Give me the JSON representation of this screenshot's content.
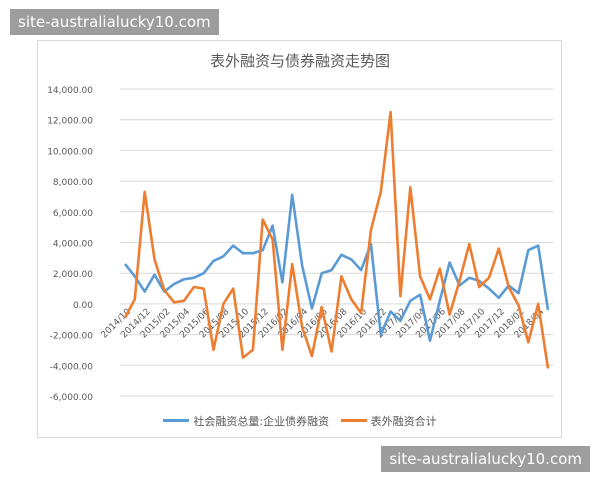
{
  "watermark": "site-australialucky10.com",
  "chart_data": {
    "type": "line",
    "title": "表外融资与债券融资走势图",
    "xlabel": "",
    "ylabel": "",
    "ylim": [
      -6000,
      14000
    ],
    "yticks": [
      14000,
      12000,
      10000,
      8000,
      6000,
      4000,
      2000,
      0,
      -2000,
      -4000,
      -6000
    ],
    "ytick_labels": [
      "14,000.00",
      "12,000.00",
      "10,000.00",
      "8,000.00",
      "6,000.00",
      "4,000.00",
      "2,000.00",
      "0.00",
      "-2,000.00",
      "-4,000.00",
      "-6,000.00"
    ],
    "grid": true,
    "legend": "bottom",
    "x_tick_labels": [
      "2014/10",
      "2014/12",
      "2015/02",
      "2015/04",
      "2015/06",
      "2015/08",
      "2015/10",
      "2015/12",
      "2016/02",
      "2016/04",
      "2016/06",
      "2016/08",
      "2016/10",
      "2016/12",
      "2017/02",
      "2017/04",
      "2017/06",
      "2017/08",
      "2017/10",
      "2017/12",
      "2018/02",
      "2018/04"
    ],
    "series": [
      {
        "name": "社会融资总量:企业债券融资",
        "color": "#5b9bd5",
        "values": [
          2600,
          1800,
          800,
          1900,
          800,
          1300,
          1600,
          1700,
          2000,
          2800,
          3100,
          3800,
          3300,
          3300,
          3500,
          5100,
          1400,
          7100,
          2500,
          -300,
          2000,
          2200,
          3200,
          2900,
          2200,
          3900,
          -2000,
          -500,
          -1100,
          200,
          600,
          -2400,
          200,
          2700,
          1200,
          1700,
          1500,
          1000,
          400,
          1200,
          700,
          3500,
          3800,
          -400
        ]
      },
      {
        "name": "表外融资合计",
        "color": "#ed7d31",
        "values": [
          -900,
          300,
          7300,
          2900,
          900,
          100,
          200,
          1100,
          1000,
          -3000,
          0,
          1000,
          -3500,
          -3000,
          5500,
          4200,
          -3000,
          2600,
          -1500,
          -3400,
          -200,
          -3100,
          1800,
          300,
          -600,
          4800,
          7300,
          12500,
          500,
          7600,
          1800,
          300,
          2300,
          -700,
          1500,
          3900,
          1100,
          1700,
          3600,
          1100,
          -100,
          -2500,
          0,
          -4200
        ]
      }
    ]
  }
}
